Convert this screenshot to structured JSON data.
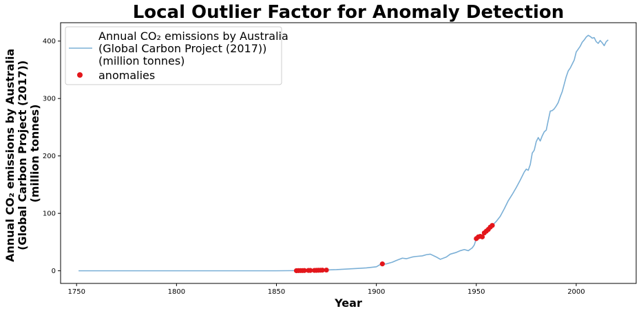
{
  "chart_data": {
    "type": "line",
    "title": "Local Outlier Factor for Anomaly Detection",
    "xlabel": "Year",
    "ylabel_lines": [
      "Annual CO₂ emissions by Australia",
      "(Global Carbon Project (2017))",
      "(million tonnes)"
    ],
    "xlim": [
      1742,
      2030
    ],
    "ylim": [
      -22,
      432
    ],
    "xticks": [
      1750,
      1800,
      1850,
      1900,
      1950,
      2000
    ],
    "yticks": [
      0,
      100,
      200,
      300,
      400
    ],
    "grid": false,
    "legend_position": "top-left",
    "colors": {
      "line": "#7aafd6",
      "anomaly": "#e3161b"
    },
    "series": [
      {
        "name_lines": [
          "Annual CO₂ emissions by Australia",
          "(Global Carbon Project (2017))",
          "(million tonnes)"
        ],
        "kind": "line",
        "points": [
          [
            1751,
            0
          ],
          [
            1800,
            0
          ],
          [
            1850,
            0
          ],
          [
            1860,
            0.3
          ],
          [
            1870,
            0.8
          ],
          [
            1880,
            2
          ],
          [
            1890,
            4
          ],
          [
            1895,
            5
          ],
          [
            1900,
            7
          ],
          [
            1902,
            11
          ],
          [
            1905,
            12
          ],
          [
            1908,
            15
          ],
          [
            1910,
            18
          ],
          [
            1913,
            22
          ],
          [
            1915,
            21
          ],
          [
            1918,
            24
          ],
          [
            1920,
            25
          ],
          [
            1923,
            26
          ],
          [
            1925,
            28
          ],
          [
            1927,
            29
          ],
          [
            1930,
            24
          ],
          [
            1932,
            20
          ],
          [
            1935,
            24
          ],
          [
            1937,
            29
          ],
          [
            1940,
            32
          ],
          [
            1942,
            35
          ],
          [
            1944,
            37
          ],
          [
            1946,
            35
          ],
          [
            1948,
            40
          ],
          [
            1949,
            45
          ],
          [
            1950,
            56
          ],
          [
            1951,
            59
          ],
          [
            1952,
            60
          ],
          [
            1953,
            60
          ],
          [
            1954,
            67
          ],
          [
            1955,
            70
          ],
          [
            1956,
            73
          ],
          [
            1957,
            77
          ],
          [
            1958,
            79
          ],
          [
            1960,
            86
          ],
          [
            1962,
            95
          ],
          [
            1964,
            108
          ],
          [
            1966,
            122
          ],
          [
            1968,
            133
          ],
          [
            1970,
            145
          ],
          [
            1972,
            158
          ],
          [
            1974,
            172
          ],
          [
            1975,
            177
          ],
          [
            1976,
            175
          ],
          [
            1977,
            185
          ],
          [
            1978,
            205
          ],
          [
            1979,
            210
          ],
          [
            1980,
            225
          ],
          [
            1981,
            232
          ],
          [
            1982,
            226
          ],
          [
            1983,
            235
          ],
          [
            1984,
            242
          ],
          [
            1985,
            245
          ],
          [
            1986,
            262
          ],
          [
            1987,
            278
          ],
          [
            1988,
            279
          ],
          [
            1989,
            282
          ],
          [
            1990,
            287
          ],
          [
            1991,
            293
          ],
          [
            1992,
            303
          ],
          [
            1993,
            312
          ],
          [
            1994,
            325
          ],
          [
            1995,
            338
          ],
          [
            1996,
            348
          ],
          [
            1997,
            353
          ],
          [
            1998,
            360
          ],
          [
            1999,
            367
          ],
          [
            2000,
            381
          ],
          [
            2001,
            386
          ],
          [
            2002,
            391
          ],
          [
            2003,
            398
          ],
          [
            2004,
            402
          ],
          [
            2005,
            407
          ],
          [
            2006,
            410
          ],
          [
            2007,
            408
          ],
          [
            2008,
            405
          ],
          [
            2009,
            406
          ],
          [
            2010,
            399
          ],
          [
            2011,
            396
          ],
          [
            2012,
            401
          ],
          [
            2013,
            397
          ],
          [
            2014,
            392
          ],
          [
            2015,
            399
          ],
          [
            2016,
            402
          ]
        ]
      },
      {
        "name": "anomalies",
        "kind": "scatter",
        "points": [
          [
            1860,
            0.2
          ],
          [
            1861,
            0.3
          ],
          [
            1862,
            0.4
          ],
          [
            1863,
            0.4
          ],
          [
            1864,
            0.5
          ],
          [
            1866,
            0.6
          ],
          [
            1867,
            0.6
          ],
          [
            1869,
            0.7
          ],
          [
            1870,
            0.8
          ],
          [
            1871,
            0.9
          ],
          [
            1872,
            1.0
          ],
          [
            1873,
            1.1
          ],
          [
            1875,
            1.3
          ],
          [
            1903,
            12
          ],
          [
            1950,
            56
          ],
          [
            1951,
            59
          ],
          [
            1952,
            60
          ],
          [
            1953,
            59
          ],
          [
            1954,
            66
          ],
          [
            1955,
            69
          ],
          [
            1956,
            72
          ],
          [
            1957,
            76
          ],
          [
            1958,
            79
          ]
        ]
      }
    ]
  }
}
